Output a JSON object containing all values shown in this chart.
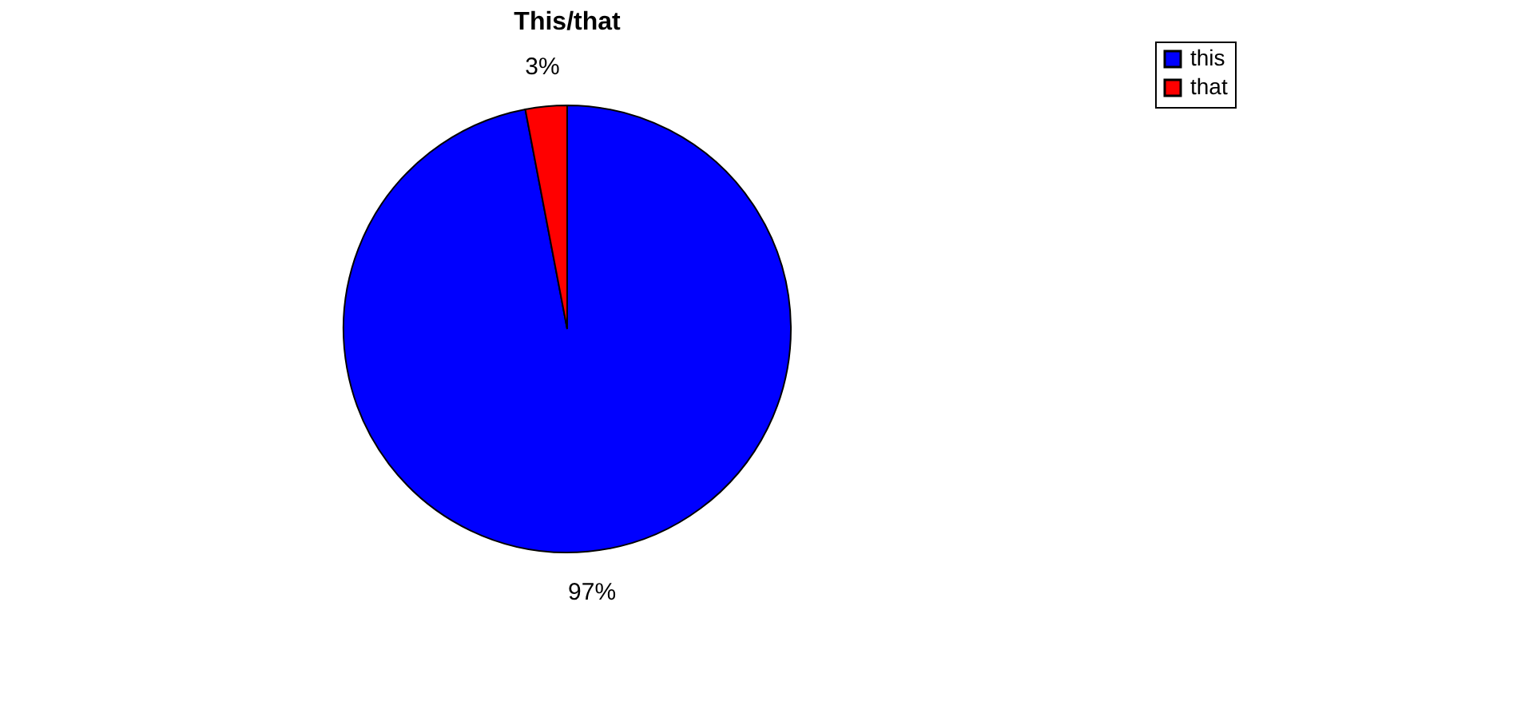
{
  "chart_data": {
    "type": "pie",
    "title": "This/that",
    "categories": [
      "this",
      "that"
    ],
    "values": [
      97,
      3
    ],
    "colors": [
      "#0000ff",
      "#ff0000"
    ],
    "value_labels": [
      "97%",
      "3%"
    ],
    "legend": "right"
  }
}
